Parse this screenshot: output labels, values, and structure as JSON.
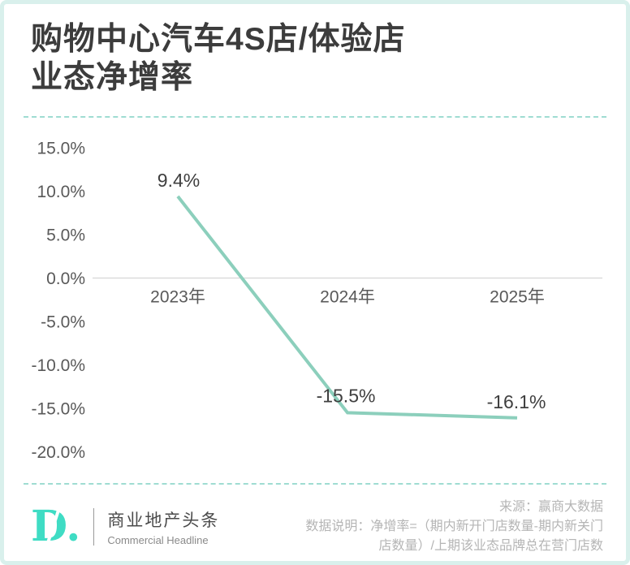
{
  "page": {
    "background": "#ffffff",
    "border_color": "#d9f0ec",
    "accent_teal": "#3fdcc4"
  },
  "header": {
    "title_line1": "购物中心汽车4S店/体验店",
    "title_line2": "业态净增率"
  },
  "chart_data": {
    "type": "line",
    "title": "购物中心汽车4S店/体验店业态净增率",
    "categories": [
      "2023年",
      "2024年",
      "2025年"
    ],
    "values": [
      9.4,
      -15.5,
      -16.1
    ],
    "value_labels": [
      "9.4%",
      "-15.5%",
      "-16.1%"
    ],
    "y_ticks": [
      "15.0%",
      "10.0%",
      "5.0%",
      "0.0%",
      "-5.0%",
      "-10.0%",
      "-15.0%",
      "-20.0%"
    ],
    "y_tick_values": [
      15,
      10,
      5,
      0,
      -5,
      -10,
      -15,
      -20
    ],
    "ylim": [
      -20,
      15
    ],
    "xlabel": "",
    "ylabel": "",
    "grid": "zero-line-only",
    "legend": "none",
    "line_color": "#8ccfbc",
    "gridline_color": "#d6d6d6",
    "axis_text_color": "#595959",
    "data_label_color": "#3f3f3f"
  },
  "footer": {
    "logo_text": "D.",
    "brand_cn": "商业地产头条",
    "brand_en": "Commercial Headline",
    "source": "来源：赢商大数据",
    "note_line1": "数据说明：净增率=（期内新开门店数量-期内新关门",
    "note_line2": "店数量）/上期该业态品牌总在营门店数"
  }
}
